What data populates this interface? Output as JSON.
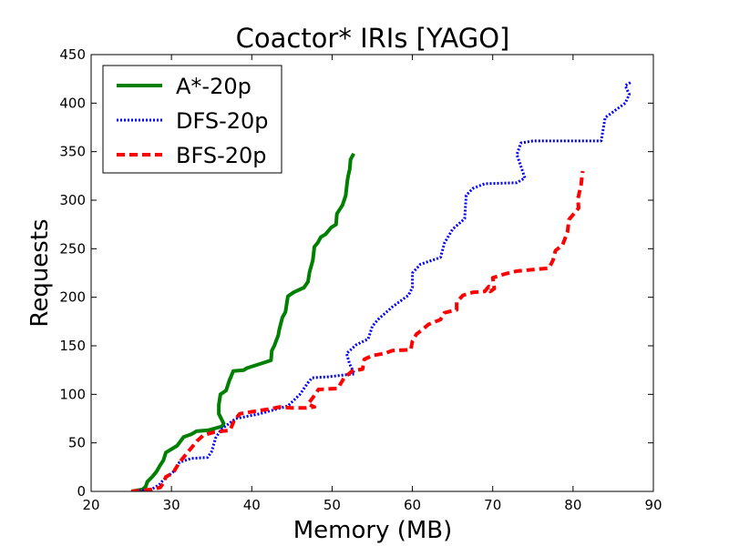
{
  "chart_data": {
    "type": "line",
    "title": "Coactor* IRIs [YAGO]",
    "xlabel": "Memory (MB)",
    "ylabel": "Requests",
    "xlim": [
      20,
      90
    ],
    "ylim": [
      0,
      450
    ],
    "xticks": [
      "20",
      "30",
      "40",
      "50",
      "60",
      "70",
      "80",
      "90"
    ],
    "yticks": [
      "0",
      "50",
      "100",
      "150",
      "200",
      "250",
      "300",
      "350",
      "400",
      "450"
    ],
    "grid": false,
    "legend_position": "top-left",
    "series": [
      {
        "name": "A*-20p",
        "color": "#008000",
        "style": "solid",
        "points": [
          [
            25.0,
            0
          ],
          [
            26.4,
            2
          ],
          [
            26.8,
            5
          ],
          [
            27.0,
            10
          ],
          [
            27.6,
            15
          ],
          [
            28.1,
            20
          ],
          [
            28.6,
            27
          ],
          [
            29.0,
            32
          ],
          [
            29.3,
            40
          ],
          [
            30.7,
            47
          ],
          [
            31.5,
            56
          ],
          [
            32.5,
            59
          ],
          [
            33.1,
            62
          ],
          [
            34.6,
            63
          ],
          [
            36.3,
            67
          ],
          [
            36.5,
            70
          ],
          [
            35.9,
            80
          ],
          [
            35.9,
            89
          ],
          [
            36.1,
            100
          ],
          [
            36.8,
            104
          ],
          [
            37.2,
            114
          ],
          [
            37.7,
            124
          ],
          [
            39.0,
            125
          ],
          [
            39.4,
            127
          ],
          [
            42.4,
            135
          ],
          [
            42.5,
            145
          ],
          [
            42.8,
            150
          ],
          [
            43.3,
            161
          ],
          [
            43.4,
            166
          ],
          [
            43.8,
            179
          ],
          [
            44.2,
            185
          ],
          [
            44.5,
            201
          ],
          [
            45.2,
            205
          ],
          [
            46.5,
            210
          ],
          [
            47.0,
            216
          ],
          [
            47.2,
            226
          ],
          [
            47.6,
            238
          ],
          [
            47.8,
            252
          ],
          [
            48.2,
            256
          ],
          [
            48.6,
            262
          ],
          [
            49.2,
            265
          ],
          [
            49.9,
            272
          ],
          [
            50.5,
            275
          ],
          [
            50.6,
            286
          ],
          [
            51.3,
            295
          ],
          [
            51.7,
            305
          ],
          [
            51.9,
            320
          ],
          [
            52.0,
            325
          ],
          [
            52.2,
            332
          ],
          [
            52.3,
            342
          ],
          [
            52.7,
            348
          ]
        ]
      },
      {
        "name": "DFS-20p",
        "color": "#0000ff",
        "style": "dotted",
        "points": [
          [
            25.0,
            0
          ],
          [
            27.5,
            2
          ],
          [
            28.5,
            7
          ],
          [
            29.0,
            12
          ],
          [
            30.2,
            20
          ],
          [
            31.0,
            30
          ],
          [
            32.5,
            34
          ],
          [
            34.5,
            35
          ],
          [
            35.0,
            41
          ],
          [
            35.5,
            55
          ],
          [
            36.2,
            64
          ],
          [
            38.0,
            75
          ],
          [
            41.0,
            80
          ],
          [
            44.5,
            88
          ],
          [
            46.0,
            100
          ],
          [
            47.0,
            112
          ],
          [
            47.5,
            117
          ],
          [
            49.5,
            118
          ],
          [
            51.5,
            120
          ],
          [
            52.8,
            121
          ],
          [
            52.2,
            131
          ],
          [
            51.8,
            142
          ],
          [
            53.0,
            151
          ],
          [
            54.5,
            157
          ],
          [
            55.0,
            170
          ],
          [
            55.7,
            177
          ],
          [
            57.5,
            190
          ],
          [
            59.5,
            202
          ],
          [
            60.0,
            210
          ],
          [
            60.0,
            225
          ],
          [
            61.0,
            234
          ],
          [
            63.5,
            241
          ],
          [
            64.0,
            256
          ],
          [
            65.0,
            270
          ],
          [
            66.5,
            281
          ],
          [
            66.7,
            305
          ],
          [
            67.5,
            312
          ],
          [
            69.0,
            317
          ],
          [
            73.0,
            318
          ],
          [
            74.0,
            323
          ],
          [
            73.0,
            347
          ],
          [
            73.5,
            359
          ],
          [
            75.0,
            361
          ],
          [
            83.5,
            361
          ],
          [
            84.0,
            385
          ],
          [
            86.5,
            400
          ],
          [
            87.0,
            409
          ],
          [
            86.5,
            418
          ],
          [
            87.3,
            422
          ]
        ]
      },
      {
        "name": "BFS-20p",
        "color": "#ff0000",
        "style": "dashed",
        "points": [
          [
            25.0,
            0
          ],
          [
            27.5,
            2
          ],
          [
            28.6,
            4
          ],
          [
            29.1,
            10
          ],
          [
            29.3,
            15
          ],
          [
            30.2,
            19
          ],
          [
            31.0,
            30
          ],
          [
            32.0,
            40
          ],
          [
            33.2,
            52
          ],
          [
            34.0,
            58
          ],
          [
            35.3,
            61
          ],
          [
            37.3,
            63
          ],
          [
            37.8,
            73
          ],
          [
            38.5,
            80
          ],
          [
            40.0,
            82
          ],
          [
            42.3,
            85
          ],
          [
            43.5,
            87
          ],
          [
            45.0,
            86
          ],
          [
            46.8,
            86
          ],
          [
            47.8,
            87
          ],
          [
            47.0,
            90
          ],
          [
            48.0,
            101
          ],
          [
            48.3,
            105
          ],
          [
            50.7,
            106
          ],
          [
            51.5,
            117
          ],
          [
            52.5,
            124
          ],
          [
            53.8,
            126
          ],
          [
            54.0,
            136
          ],
          [
            55.0,
            140
          ],
          [
            56.5,
            142
          ],
          [
            57.5,
            145
          ],
          [
            59.8,
            146
          ],
          [
            60.0,
            155
          ],
          [
            60.5,
            162
          ],
          [
            61.3,
            167
          ],
          [
            62.0,
            172
          ],
          [
            63.5,
            177
          ],
          [
            64.0,
            184
          ],
          [
            65.5,
            187
          ],
          [
            65.5,
            195
          ],
          [
            66.3,
            202
          ],
          [
            67.5,
            205
          ],
          [
            69.0,
            206
          ],
          [
            69.5,
            211
          ],
          [
            69.7,
            206
          ],
          [
            70.2,
            209
          ],
          [
            70.0,
            220
          ],
          [
            71.5,
            224
          ],
          [
            73.0,
            227
          ],
          [
            77.0,
            230
          ],
          [
            77.5,
            238
          ],
          [
            77.8,
            248
          ],
          [
            78.7,
            254
          ],
          [
            79.3,
            267
          ],
          [
            79.5,
            280
          ],
          [
            80.2,
            287
          ],
          [
            80.7,
            292
          ],
          [
            80.6,
            301
          ],
          [
            81.0,
            316
          ],
          [
            81.2,
            330
          ]
        ]
      }
    ]
  }
}
